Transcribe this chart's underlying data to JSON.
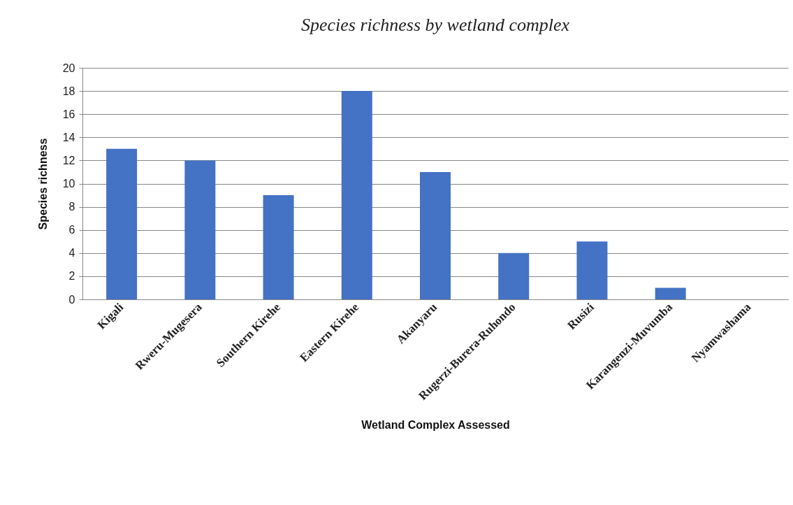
{
  "chart_data": {
    "type": "bar",
    "title": "Species richness by wetland complex",
    "xlabel": "Wetland Complex Assessed",
    "ylabel": "Species richness",
    "categories": [
      "Kigali",
      "Rweru-Mugesera",
      "Southern Kirehe",
      "Eastern Kirehe",
      "Akanyaru",
      "Rugerzi-Burera-Ruhondo",
      "Rusizi",
      "Karangenzi-Muvumba",
      "Nyamwashama"
    ],
    "values": [
      13,
      12,
      9,
      18,
      11,
      4,
      5,
      1,
      0
    ],
    "color": "#4472c4",
    "ylim": [
      0,
      20
    ],
    "yticks": [
      0,
      2,
      4,
      6,
      8,
      10,
      12,
      14,
      16,
      18,
      20
    ],
    "grid": "y"
  }
}
